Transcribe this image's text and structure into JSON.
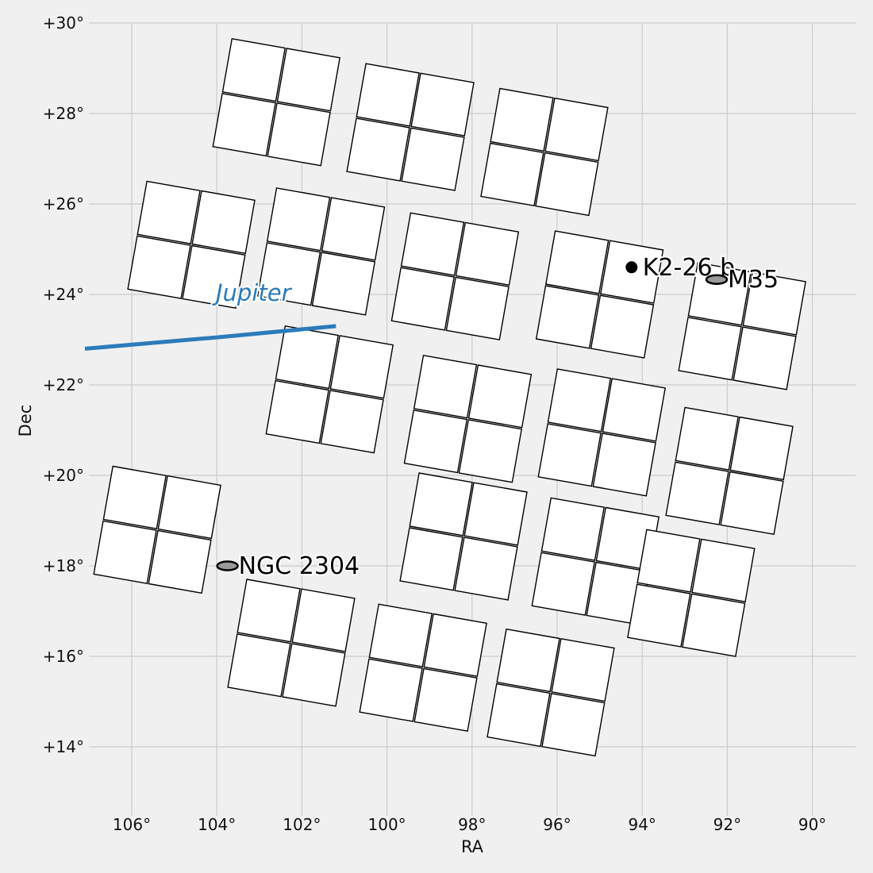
{
  "chart_data": {
    "type": "scatter",
    "xlabel": "RA",
    "ylabel": "Dec",
    "xlim": [
      107,
      89
    ],
    "ylim": [
      12.5,
      30
    ],
    "x_ticks": [
      106,
      104,
      102,
      100,
      98,
      96,
      94,
      92,
      90
    ],
    "x_tick_labels": [
      "106°",
      "104°",
      "102°",
      "100°",
      "98°",
      "96°",
      "94°",
      "92°",
      "90°"
    ],
    "y_ticks": [
      30,
      28,
      26,
      24,
      22,
      20,
      18,
      16,
      14
    ],
    "y_tick_labels": [
      "+30°",
      "+28°",
      "+26°",
      "+24°",
      "+22°",
      "+20°",
      "+18°",
      "+16°",
      "+14°"
    ],
    "grid": true,
    "colors": {
      "background": "#f0f0f0",
      "grid": "#cbcbcb",
      "ccd_fill": "#ffffff",
      "ccd_edge": "#000000",
      "planet_track": "#2b7bba",
      "cluster_fill": "#999999"
    },
    "ccd_modules": [
      {
        "center": [
          102.6,
          28.25
        ]
      },
      {
        "center": [
          99.45,
          27.7
        ]
      },
      {
        "center": [
          96.3,
          27.15
        ]
      },
      {
        "center": [
          104.6,
          25.1
        ]
      },
      {
        "center": [
          101.55,
          24.95
        ]
      },
      {
        "center": [
          98.4,
          24.4
        ]
      },
      {
        "center": [
          95.0,
          24.0
        ]
      },
      {
        "center": [
          91.65,
          23.3
        ]
      },
      {
        "center": [
          101.35,
          21.9
        ]
      },
      {
        "center": [
          98.1,
          21.25
        ]
      },
      {
        "center": [
          94.95,
          20.95
        ]
      },
      {
        "center": [
          91.95,
          20.1
        ]
      },
      {
        "center": [
          105.4,
          18.8
        ]
      },
      {
        "center": [
          98.2,
          18.65
        ]
      },
      {
        "center": [
          95.1,
          18.1
        ]
      },
      {
        "center": [
          92.85,
          17.4
        ]
      },
      {
        "center": [
          102.25,
          16.3
        ]
      },
      {
        "center": [
          99.15,
          15.75
        ]
      },
      {
        "center": [
          96.15,
          15.2
        ]
      }
    ],
    "targets": [
      {
        "name": "K2-26 b",
        "ra": 94.25,
        "dec": 24.6,
        "marker": "dot"
      },
      {
        "name": "M35",
        "ra": 92.25,
        "dec": 24.33,
        "marker": "ellipse"
      },
      {
        "name": "NGC 2304",
        "ra": 103.75,
        "dec": 18.0,
        "marker": "ellipse"
      }
    ],
    "planet_track": {
      "name": "Jupiter",
      "points": [
        [
          107.1,
          22.8
        ],
        [
          104.0,
          23.05
        ],
        [
          101.2,
          23.3
        ]
      ]
    }
  }
}
